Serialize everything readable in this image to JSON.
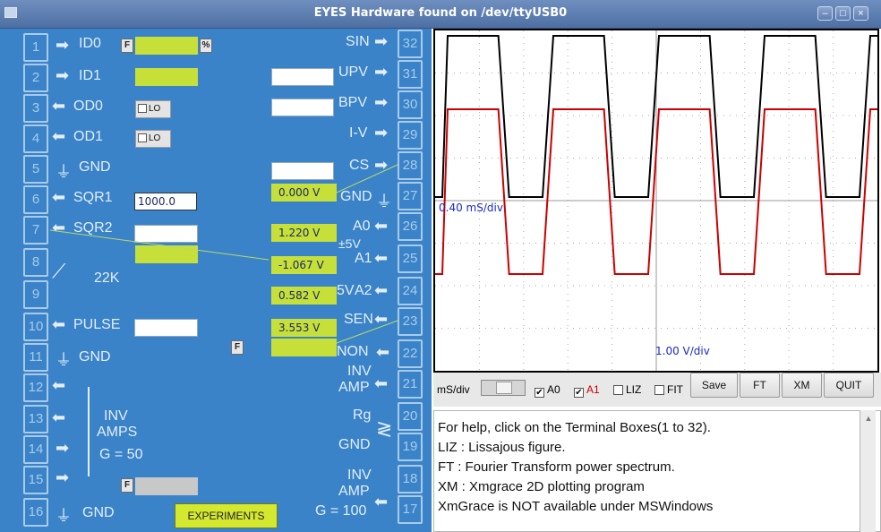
{
  "window": {
    "title": "EYES Hardware found on /dev/ttyUSB0"
  },
  "terminals_left": [
    "1",
    "2",
    "3",
    "4",
    "5",
    "6",
    "7",
    "8",
    "9",
    "10",
    "11",
    "12",
    "13",
    "14",
    "15",
    "16"
  ],
  "terminals_right": [
    "32",
    "31",
    "30",
    "29",
    "28",
    "27",
    "26",
    "25",
    "24",
    "23",
    "22",
    "21",
    "20",
    "19",
    "18",
    "17"
  ],
  "labels_left": {
    "id0": "ID0",
    "id1": "ID1",
    "od0": "OD0",
    "od1": "OD1",
    "gnd5": "GND",
    "sqr1": "SQR1",
    "sqr2": "SQR2",
    "r22k": "22K",
    "pulse": "PULSE",
    "gnd11": "GND",
    "inv": "INV",
    "amps": "AMPS",
    "g50": "G = 50",
    "gnd16": "GND"
  },
  "labels_right": {
    "sin": "SIN",
    "upv": "UPV",
    "bpv": "BPV",
    "iv": "I-V",
    "cs": "CS",
    "gnd27": "GND",
    "pm5v": "±5V",
    "a0": "A0",
    "a1": "A1",
    "a2": "A2",
    "v5": "5V",
    "sen": "SEN",
    "non": "NON",
    "inv21": "INV",
    "amp21": "AMP",
    "rg": "Rg",
    "gnd19": "GND",
    "inv18": "INV",
    "amp18": "AMP",
    "g100": "G = 100"
  },
  "buttons_small": {
    "f": "F",
    "percent": "%",
    "lo": "LO"
  },
  "inputs": {
    "sqr1_value": "1000.0"
  },
  "readouts": {
    "v27": "0.000 V",
    "v26": "1.220 V",
    "v25": "-1.067 V",
    "v24": "0.582 V",
    "v23": "3.553 V"
  },
  "experiments_button": "EXPERIMENTS",
  "scope": {
    "time_label": "0.40 mS/div",
    "volt_label": "1.00 V/div",
    "colors": {
      "a0": "#000000",
      "a1": "#cc0000",
      "grid": "#aaaaaa"
    }
  },
  "controls": {
    "msdiv": "mS/div",
    "a0": "A0",
    "a1": "A1",
    "liz": "LIZ",
    "fit": "FIT",
    "a0_checked": "✔",
    "a1_checked": "✔",
    "save": "Save",
    "ft": "FT",
    "xm": "XM",
    "quit": "QUIT"
  },
  "help": [
    "For help, click on the Terminal Boxes(1 to 32).",
    "LIZ : Lissajous figure.",
    "FT : Fourier Transform power spectrum.",
    "XM : Xmgrace 2D plotting program",
    "XmGrace is NOT available under MSWindows"
  ]
}
